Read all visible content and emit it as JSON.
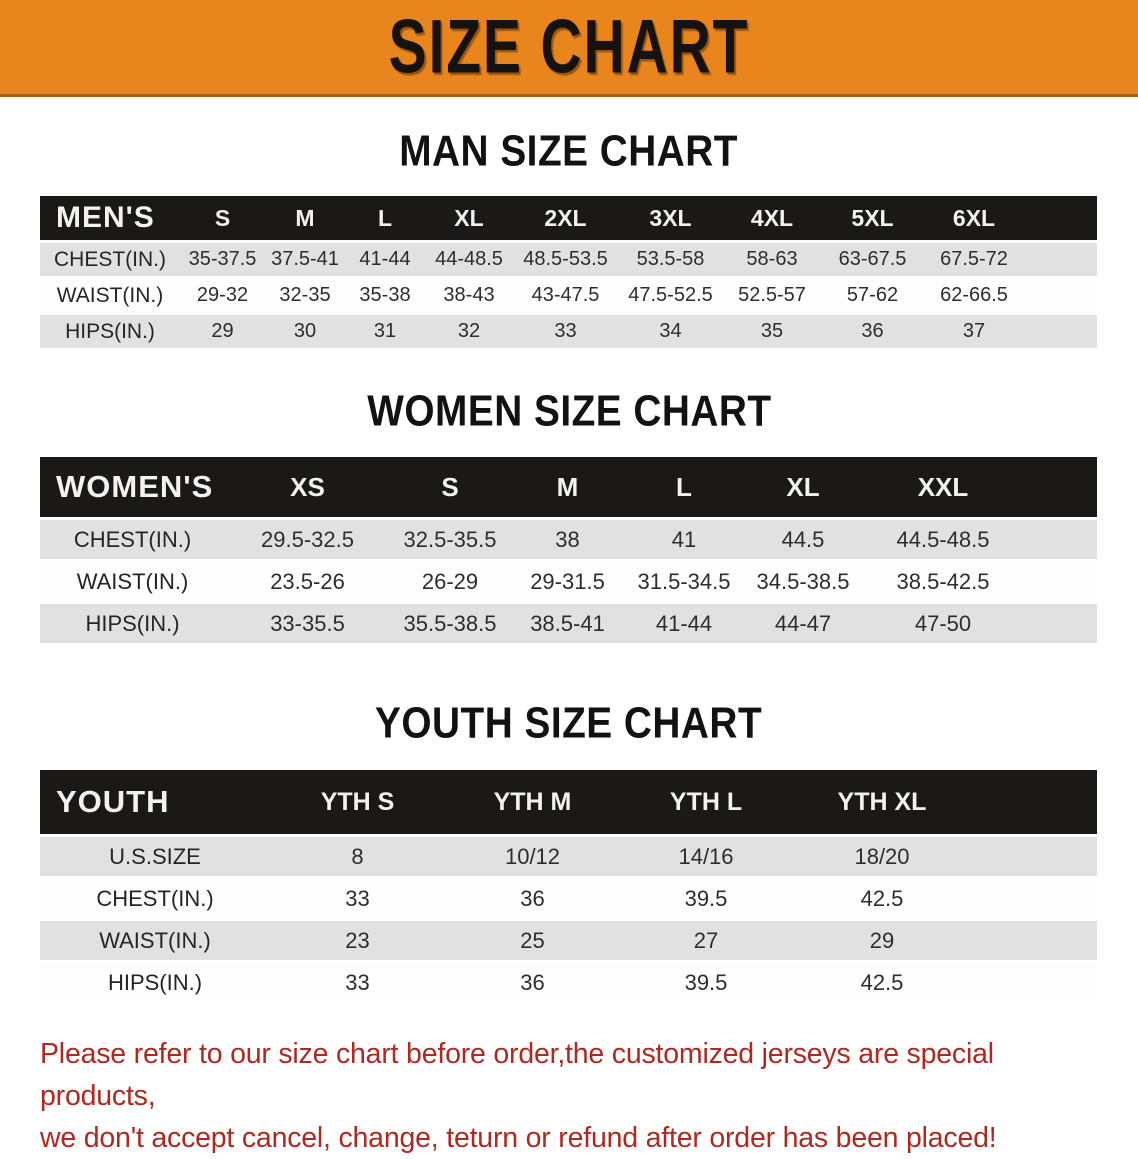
{
  "banner": {
    "title": "SIZE CHART",
    "bg_color": "#E8861D",
    "text_color": "#161210"
  },
  "sections": [
    {
      "heading": "MAN SIZE CHART",
      "corner_label": "MEN'S",
      "columns": [
        "S",
        "M",
        "L",
        "XL",
        "2XL",
        "3XL",
        "4XL",
        "5XL",
        "6XL"
      ],
      "rows": [
        {
          "label": "CHEST(IN.)",
          "values": [
            "35-37.5",
            "37.5-41",
            "41-44",
            "44-48.5",
            "48.5-53.5",
            "53.5-58",
            "58-63",
            "63-67.5",
            "67.5-72"
          ]
        },
        {
          "label": "WAIST(IN.)",
          "values": [
            "29-32",
            "32-35",
            "35-38",
            "38-43",
            "43-47.5",
            "47.5-52.5",
            "52.5-57",
            "57-62",
            "62-66.5"
          ]
        },
        {
          "label": "HIPS(IN.)",
          "values": [
            "29",
            "30",
            "31",
            "32",
            "33",
            "34",
            "35",
            "36",
            "37"
          ]
        }
      ]
    },
    {
      "heading": "WOMEN SIZE CHART",
      "corner_label": "WOMEN'S",
      "columns": [
        "XS",
        "S",
        "M",
        "L",
        "XL",
        "XXL"
      ],
      "rows": [
        {
          "label": "CHEST(IN.)",
          "values": [
            "29.5-32.5",
            "32.5-35.5",
            "38",
            "41",
            "44.5",
            "44.5-48.5"
          ]
        },
        {
          "label": "WAIST(IN.)",
          "values": [
            "23.5-26",
            "26-29",
            "29-31.5",
            "31.5-34.5",
            "34.5-38.5",
            "38.5-42.5"
          ]
        },
        {
          "label": "HIPS(IN.)",
          "values": [
            "33-35.5",
            "35.5-38.5",
            "38.5-41",
            "41-44",
            "44-47",
            "47-50"
          ]
        }
      ]
    },
    {
      "heading": "YOUTH SIZE CHART",
      "corner_label": "YOUTH",
      "columns": [
        "YTH S",
        "YTH M",
        "YTH L",
        "YTH XL"
      ],
      "rows": [
        {
          "label": "U.S.SIZE",
          "values": [
            "8",
            "10/12",
            "14/16",
            "18/20"
          ]
        },
        {
          "label": "CHEST(IN.)",
          "values": [
            "33",
            "36",
            "39.5",
            "42.5"
          ]
        },
        {
          "label": "WAIST(IN.)",
          "values": [
            "23",
            "25",
            "27",
            "29"
          ]
        },
        {
          "label": "HIPS(IN.)",
          "values": [
            "33",
            "36",
            "39.5",
            "42.5"
          ]
        }
      ]
    }
  ],
  "disclaimer": {
    "line1": "Please refer to our size chart before order,the customized jerseys are special products,",
    "line2": "we don't accept cancel, change, teturn or refund after order has been placed!",
    "text_color": "#AE2921"
  },
  "colors": {
    "banner_orange": "#E8861D",
    "table_header_black": "#1B1818",
    "row_gray": "#E2E1E2",
    "row_white": "#FEFEFE",
    "disclaimer_red": "#AE2921"
  }
}
